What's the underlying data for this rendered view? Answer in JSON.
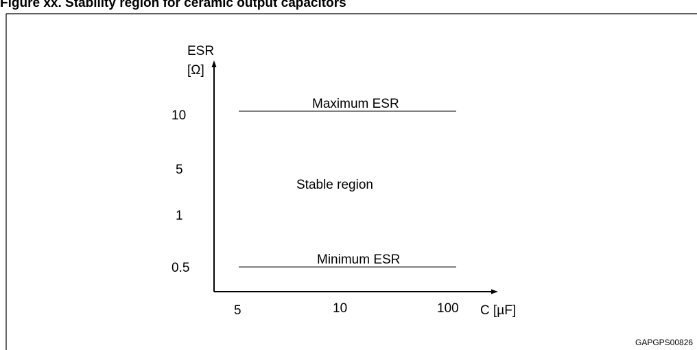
{
  "caption": "Figure xx. Stability region for ceramic output capacitors",
  "figure_code": "GAPGPS00826",
  "colors": {
    "stroke": "#000000",
    "background": "#ffffff"
  },
  "chart_data": {
    "type": "line",
    "title": "",
    "xlabel": "C [µF]",
    "ylabel_line1": "ESR",
    "ylabel_line2": "[Ω]",
    "x_scale": "categorical",
    "y_scale": "categorical",
    "x_ticks": [
      "5",
      "10",
      "100"
    ],
    "y_ticks": [
      "0.5",
      "1",
      "5",
      "10"
    ],
    "grid": false,
    "legend": "none",
    "series": [
      {
        "name": "Maximum ESR",
        "x": [
          "5",
          "100"
        ],
        "y": [
          "10",
          "10"
        ]
      },
      {
        "name": "Minimum ESR",
        "x": [
          "5",
          "100"
        ],
        "y": [
          "0.5",
          "0.5"
        ]
      }
    ],
    "annotations": [
      {
        "text": "Maximum ESR"
      },
      {
        "text": "Minimum ESR"
      },
      {
        "text": "Stable region"
      }
    ]
  }
}
